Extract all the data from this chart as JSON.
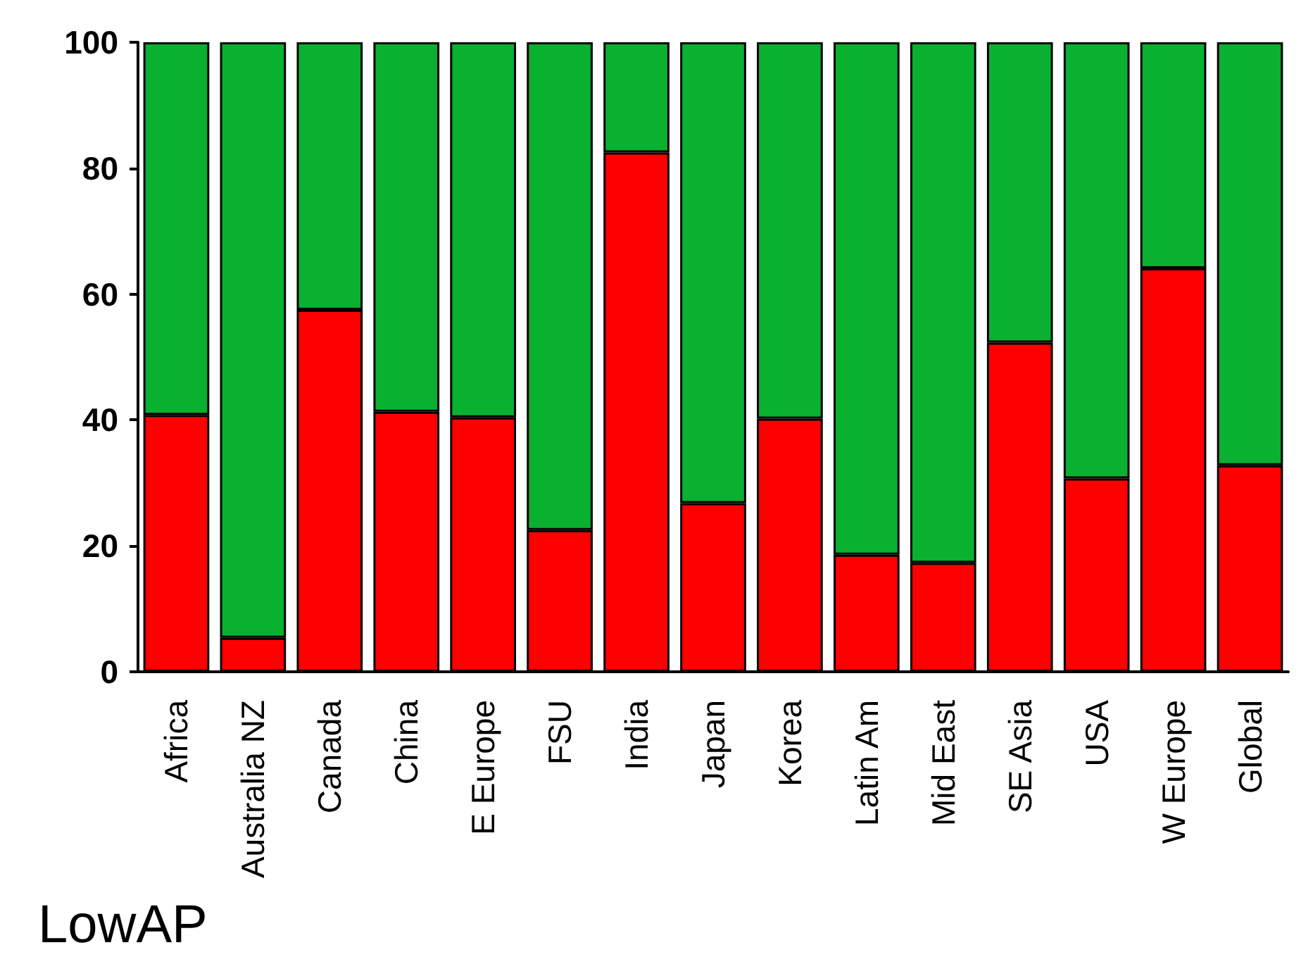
{
  "chart_data": {
    "type": "bar",
    "title": "LowAP",
    "stacked": true,
    "categories": [
      "Africa",
      "Australia NZ",
      "Canada",
      "China",
      "E Europe",
      "FSU",
      "India",
      "Japan",
      "Korea",
      "Latin Am",
      "Mid East",
      "SE Asia",
      "USA",
      "W Europe",
      "Global"
    ],
    "series": [
      {
        "color": "#ff0000",
        "values": [
          40.8,
          5.4,
          57.5,
          41.3,
          40.4,
          22.5,
          82.5,
          26.8,
          40.2,
          18.6,
          17.3,
          52.3,
          30.7,
          64.1,
          32.8
        ]
      },
      {
        "color": "#0ab030",
        "values": [
          59.2,
          94.6,
          42.5,
          58.7,
          59.6,
          77.5,
          17.5,
          73.2,
          59.8,
          81.4,
          82.7,
          47.7,
          69.3,
          35.9,
          67.2
        ]
      }
    ],
    "ylim": [
      0,
      100
    ],
    "yticks": [
      0,
      20,
      40,
      60,
      80,
      100
    ],
    "grid": false
  }
}
